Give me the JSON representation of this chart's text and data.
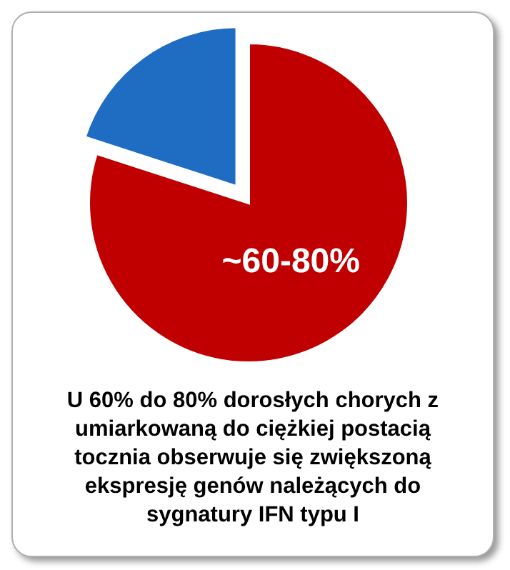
{
  "chart_data": {
    "type": "pie",
    "categories": [
      null,
      null
    ],
    "values": [
      80,
      20
    ],
    "colors": [
      "#c00000",
      "#1f6dc2"
    ],
    "annotations": [
      "~60-80%",
      "U 60% do 80% dorosłych chorych z umiarkowaną do ciężkiej postacią tocznia obserwuje się zwiększoną ekspresję genów należących do sygnatury IFN typu I"
    ]
  }
}
